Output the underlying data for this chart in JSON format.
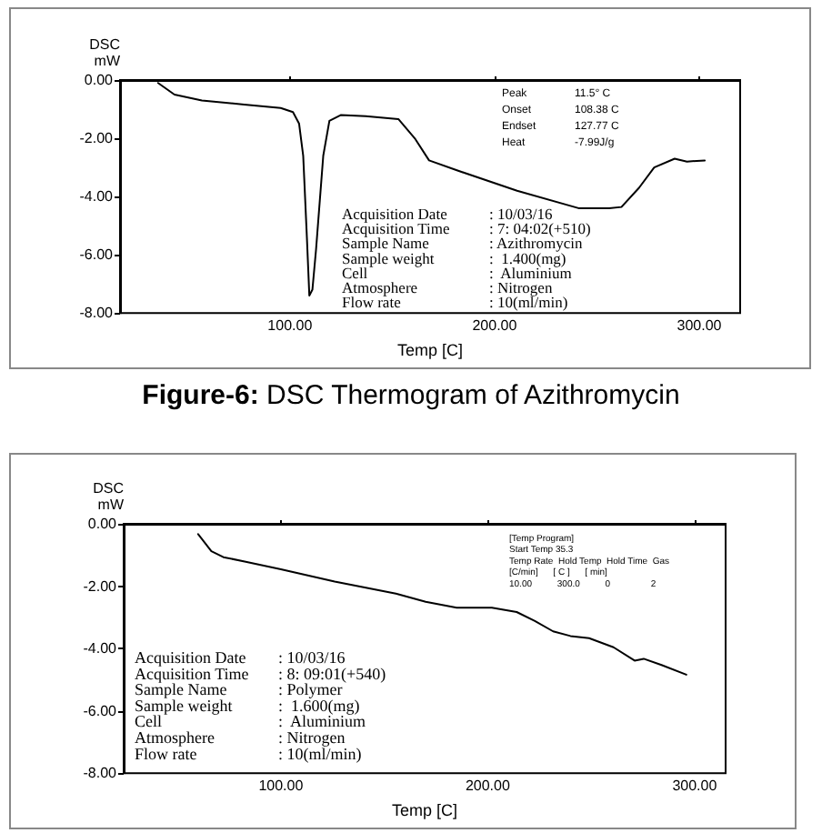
{
  "chart_data": [
    {
      "type": "line",
      "title": "Figure-6: DSC Thermogram of Azithromycin",
      "xlabel": "Temp [C]",
      "ylabel": "DSC\nmW",
      "color": "#000000",
      "marker": "none",
      "line_style": "solid",
      "grid": false,
      "x": [
        35.6,
        43.6,
        57,
        77.7,
        95.5,
        101.5,
        104.5,
        106.5,
        108.3,
        109.5,
        111,
        112.8,
        116.3,
        119.3,
        125,
        137,
        153,
        161,
        168,
        181.6,
        211,
        241,
        256,
        262,
        270.6,
        278,
        288,
        294,
        302.7
      ],
      "values": [
        -0.1,
        -0.5,
        -0.7,
        -0.84,
        -0.96,
        -1.1,
        -1.5,
        -2.6,
        -5.4,
        -7.4,
        -7.2,
        -5.8,
        -2.6,
        -1.4,
        -1.2,
        -1.24,
        -1.34,
        -2.0,
        -2.76,
        -3.1,
        -3.8,
        -4.4,
        -4.4,
        -4.36,
        -3.7,
        -3.0,
        -2.7,
        -2.8,
        -2.76
      ],
      "xlim": [
        17,
        320
      ],
      "ylim": [
        -8,
        0
      ],
      "xticks": [
        {
          "value": 100,
          "label": "100.00"
        },
        {
          "value": 200,
          "label": "200.00"
        },
        {
          "value": 300,
          "label": "300.00"
        }
      ],
      "yticks": [
        {
          "value": 0,
          "label": "0.00"
        },
        {
          "value": -2,
          "label": "-2.00"
        },
        {
          "value": -4,
          "label": "-4.00"
        },
        {
          "value": -6,
          "label": "-6.00"
        },
        {
          "value": -8,
          "label": "-8.00"
        }
      ],
      "annotations": [
        "Peak\t11.5° C\nOnset\t108.38 C\nEndset\t127.77 C\nHeat\t-7.99J/g",
        "Acquisition Date\t: 10/03/16\nAcquisition Time\t: 7: 04:02(+510)\nSample Name\t: Azithromycin\nSample weight\t:  1.400(mg)\nCell\t:  Aluminium\nAtmosphere\t: Nitrogen\nFlow rate\t: 10(ml/min)"
      ]
    },
    {
      "type": "line",
      "xlabel": "Temp [C]",
      "ylabel": "DSC\nmW",
      "color": "#000000",
      "marker": "none",
      "line_style": "solid",
      "grid": false,
      "x": [
        60,
        66.4,
        72.2,
        82.5,
        100,
        126,
        155.6,
        170,
        185,
        202,
        214,
        222.8,
        231.6,
        240,
        249,
        260.8,
        271,
        275.4,
        284,
        296
      ],
      "values": [
        -0.33,
        -0.88,
        -1.07,
        -1.21,
        -1.46,
        -1.85,
        -2.24,
        -2.5,
        -2.69,
        -2.69,
        -2.83,
        -3.12,
        -3.45,
        -3.6,
        -3.67,
        -3.96,
        -4.39,
        -4.33,
        -4.53,
        -4.84
      ],
      "xlim": [
        24,
        315
      ],
      "ylim": [
        -8,
        0
      ],
      "xticks": [
        {
          "value": 100,
          "label": "100.00"
        },
        {
          "value": 200,
          "label": "200.00"
        },
        {
          "value": 300,
          "label": "300.00"
        }
      ],
      "yticks": [
        {
          "value": 0,
          "label": "0.00"
        },
        {
          "value": -2,
          "label": "-2.00"
        },
        {
          "value": -4,
          "label": "-4.00"
        },
        {
          "value": -6,
          "label": "-6.00"
        },
        {
          "value": -8,
          "label": "-8.00"
        }
      ],
      "annotations": [
        "[Temp Program]\nStart Temp 35.3\nTemp Rate  Hold Temp  Hold Time  Gas\n[C/min]      [ C ]      [ min]\n10.00          300.0          0                2",
        "Acquisition Date\t: 10/03/16\nAcquisition Time\t: 8: 09:01(+540)\nSample Name\t: Polymer\nSample weight\t:  1.600(mg)\nCell\t:  Aluminium\nAtmosphere\t: Nitrogen\nFlow rate\t: 10(ml/min)"
      ]
    }
  ]
}
